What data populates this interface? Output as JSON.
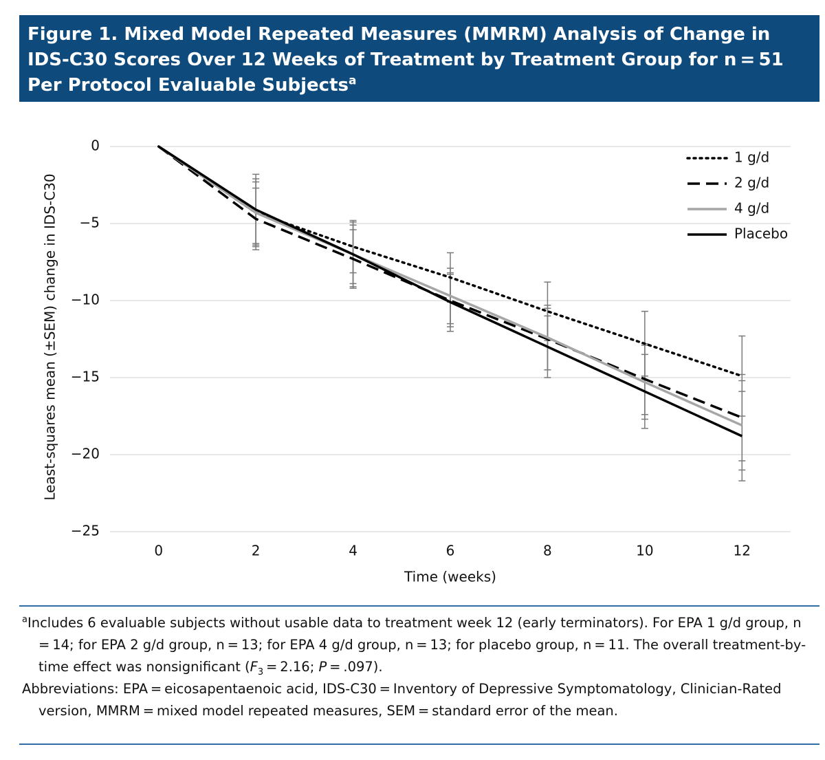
{
  "header": {
    "title": "Figure 1. Mixed Model Repeated Measures (MMRM) Analysis of Change in IDS-C30 Scores Over 12 Weeks of Treatment by Treatment Group for n = 51 Per Protocol Evaluable Subjects",
    "title_sup": "a"
  },
  "chart_data": {
    "type": "line",
    "x_label": "Time (weeks)",
    "y_label": "Least-squares mean (±SEM) change in IDS-C30",
    "x": [
      0,
      2,
      4,
      6,
      8,
      10,
      12
    ],
    "xlim": [
      -1,
      13
    ],
    "xticks": [
      0,
      2,
      4,
      6,
      8,
      10,
      12
    ],
    "ylim": [
      -25,
      0
    ],
    "yticks": [
      {
        "value": 0,
        "label": "0"
      },
      {
        "value": -5,
        "label": "−5"
      },
      {
        "value": -10,
        "label": "−10"
      },
      {
        "value": -15,
        "label": "−15"
      },
      {
        "value": -20,
        "label": "−20"
      },
      {
        "value": -25,
        "label": "−25"
      }
    ],
    "grid": true,
    "legend": "top-right",
    "error_color": "#7a7a7a",
    "series": [
      {
        "name": "1 g/d",
        "color": "#000000",
        "dash": "dotted",
        "values": [
          0,
          -4.3,
          -6.5,
          -8.5,
          -10.7,
          -12.8,
          -14.9
        ],
        "errors": [
          null,
          2.0,
          1.7,
          1.6,
          1.9,
          2.1,
          2.6
        ]
      },
      {
        "name": "2 g/d",
        "color": "#000000",
        "dash": "dashed",
        "values": [
          0,
          -4.7,
          -7.3,
          -10.0,
          -12.5,
          -15.1,
          -17.6
        ],
        "errors": [
          null,
          2.0,
          1.9,
          1.7,
          2.0,
          2.3,
          2.8
        ]
      },
      {
        "name": "4 g/d",
        "color": "#a6a6a6",
        "dash": "solid",
        "values": [
          0,
          -4.3,
          -7.0,
          -9.7,
          -12.4,
          -15.3,
          -18.1
        ],
        "errors": [
          null,
          2.2,
          1.9,
          1.8,
          2.1,
          2.4,
          2.9
        ]
      },
      {
        "name": "Placebo",
        "color": "#000000",
        "dash": "solid",
        "values": [
          0,
          -4.1,
          -7.0,
          -10.1,
          -13.0,
          -15.9,
          -18.8
        ],
        "errors": [
          null,
          2.3,
          2.1,
          1.9,
          2.0,
          2.4,
          2.9
        ]
      }
    ]
  },
  "footnotes": {
    "a_sup": "a",
    "a_text1": "Includes 6 evaluable subjects without usable data to treatment week 12 (early terminators). For EPA 1 g/d group, n = 14; for EPA 2 g/d group, n = 13; for EPA 4 g/d group, n = 13; for placebo group, n = 11. The overall treatment-by-time effect was nonsignificant (",
    "a_F": "F",
    "a_sub": "3",
    "a_text2": " = 2.16; ",
    "a_P": "P",
    "a_text3": " = .097).",
    "abbreviations": "Abbreviations: EPA = eicosapentaenoic acid, IDS-C30 = Inventory of Depressive Symptomatology, Clinician-Rated version, MMRM = mixed model repeated measures, SEM = standard error of the mean."
  }
}
